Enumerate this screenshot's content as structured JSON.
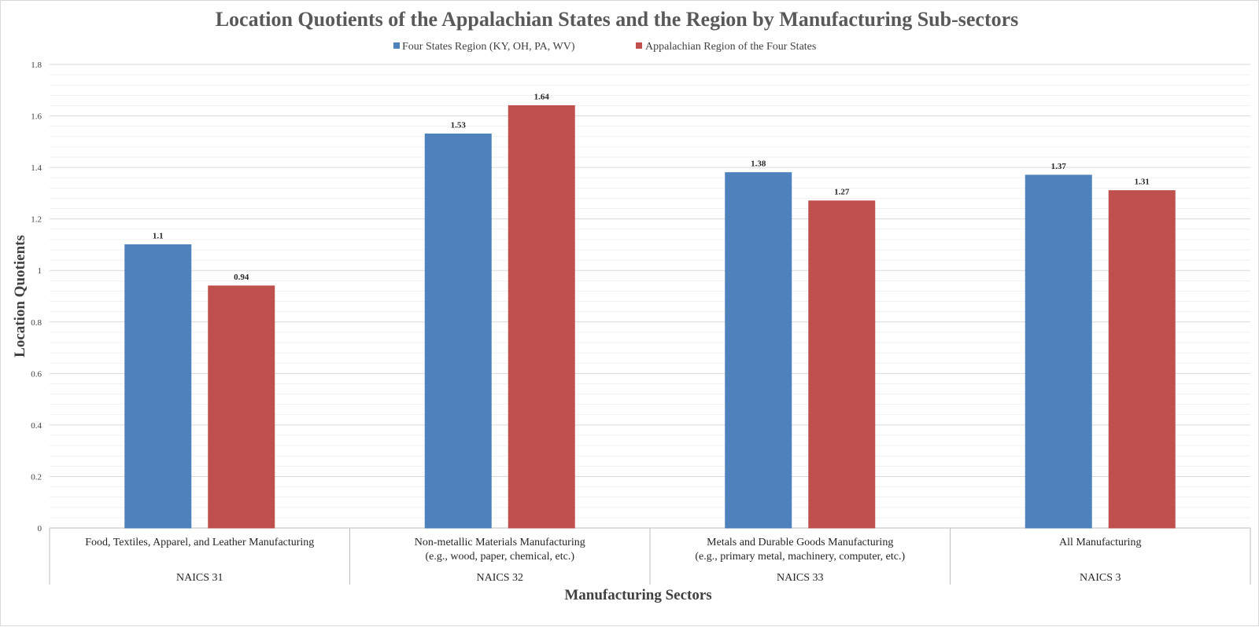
{
  "chart_data": {
    "type": "bar",
    "title": "Location Quotients of the Appalachian States and the Region by Manufacturing Sub-sectors",
    "xlabel": "Manufacturing Sectors",
    "ylabel": "Location Quotients",
    "ylim": [
      0,
      1.8
    ],
    "yticks": [
      "0",
      "0.2",
      "0.4",
      "0.6",
      "0.8",
      "1",
      "1.2",
      "1.4",
      "1.6",
      "1.8"
    ],
    "grid": true,
    "legend_position": "top",
    "categories": [
      {
        "label_lines": [
          "Food, Textiles, Apparel, and Leather Manufacturing"
        ],
        "code": "NAICS 31"
      },
      {
        "label_lines": [
          "Non-metallic Materials Manufacturing",
          "(e.g., wood, paper, chemical, etc.)"
        ],
        "code": "NAICS 32"
      },
      {
        "label_lines": [
          "Metals and Durable Goods Manufacturing",
          "(e.g., primary metal, machinery, computer, etc.)"
        ],
        "code": "NAICS 33"
      },
      {
        "label_lines": [
          "All Manufacturing"
        ],
        "code": "NAICS 3"
      }
    ],
    "series": [
      {
        "name": "Four States Region (KY, OH, PA, WV)",
        "color": "#4f81bd",
        "values": [
          1.1,
          1.53,
          1.38,
          1.37
        ],
        "labels": [
          "1.1",
          "1.53",
          "1.38",
          "1.37"
        ]
      },
      {
        "name": "Appalachian Region of the Four States",
        "color": "#c0504d",
        "values": [
          0.94,
          1.64,
          1.27,
          1.31
        ],
        "labels": [
          "0.94",
          "1.64",
          "1.27",
          "1.31"
        ]
      }
    ]
  }
}
